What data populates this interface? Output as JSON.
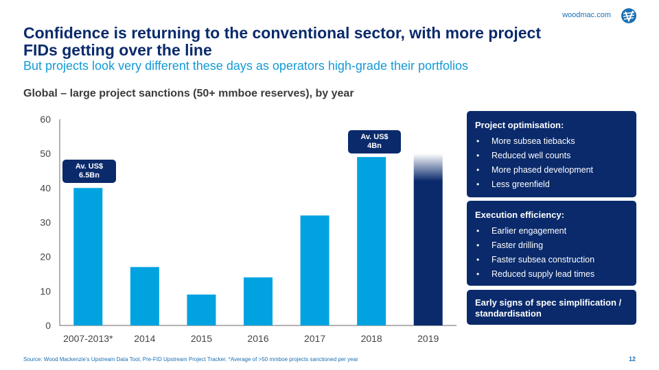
{
  "brand": "woodmac.com",
  "title": "Confidence is returning to the conventional sector, with more project FIDs getting over the line",
  "subtitle": "But projects look very different these days as operators high-grade their portfolios",
  "chart_title": "Global – large project sanctions (50+ mmboe reserves), by year",
  "callouts": [
    {
      "line1": "Av. US$",
      "line2": "6.5Bn"
    },
    {
      "line1": "Av. US$",
      "line2": "4Bn"
    }
  ],
  "panels": [
    {
      "title": "Project optimisation:",
      "items": [
        "More subsea tiebacks",
        "Reduced well counts",
        "More phased development",
        "Less greenfield"
      ]
    },
    {
      "title": "Execution efficiency:",
      "items": [
        "Earlier engagement",
        "Faster drilling",
        "Faster subsea construction",
        "Reduced supply lead times"
      ]
    },
    {
      "title": "Early signs of spec simplification / standardisation",
      "items": []
    }
  ],
  "bullet_char": "•",
  "source": "Source: Wood Mackenzie's Upstream Data Tool, Pre-FID Upstream Project Tracker. *Average of >50 mmboe projects sanctioned per year",
  "page_number": "12",
  "colors": {
    "bar": "#00a3e0",
    "bar_highlight": "#0a2a6b",
    "navy": "#0a2a6b",
    "accent": "#139ad6"
  },
  "chart_data": {
    "type": "bar",
    "categories": [
      "2007-2013*",
      "2014",
      "2015",
      "2016",
      "2017",
      "2018",
      "2019"
    ],
    "values": [
      40,
      17,
      9,
      14,
      32,
      49,
      50
    ],
    "yticks": [
      "0",
      "10",
      "20",
      "30",
      "40",
      "50",
      "60"
    ],
    "ylim": [
      0,
      60
    ],
    "grid": false,
    "title": "Global – large project sanctions (50+ mmboe reserves), by year",
    "xlabel": "",
    "ylabel": ""
  }
}
